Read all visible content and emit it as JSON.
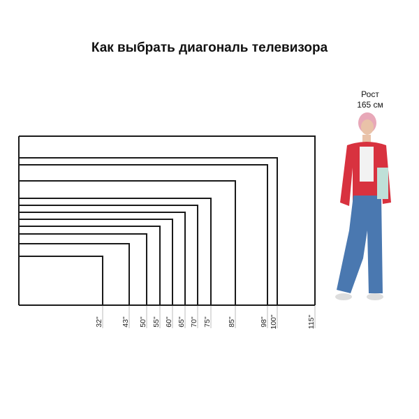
{
  "title": "Как выбрать диагональ телевизора",
  "person": {
    "label_line1": "Рост",
    "label_line2": "165 см"
  },
  "sizes": [
    "32\"",
    "43\"",
    "50\"",
    "55\"",
    "60\"",
    "65\"",
    "70\"",
    "75\"",
    "85\"",
    "98\"",
    "100\"",
    "115\""
  ],
  "diagonals": [
    32,
    43,
    50,
    55,
    60,
    65,
    70,
    75,
    85,
    98,
    100,
    115
  ],
  "colors": {
    "frame": "#1a1a1a",
    "tick": "#bbbbbb",
    "jacket": "#d8323f",
    "jeans": "#4a78b0",
    "hair": "#e8a8b8"
  }
}
